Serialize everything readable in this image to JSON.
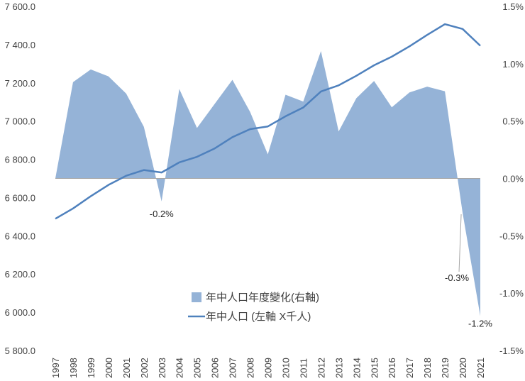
{
  "chart_data": {
    "type": "area+line",
    "categories": [
      "1997",
      "1998",
      "1999",
      "2000",
      "2001",
      "2002",
      "2003",
      "2004",
      "2005",
      "2006",
      "2007",
      "2008",
      "2009",
      "2010",
      "2011",
      "2012",
      "2013",
      "2014",
      "2015",
      "2016",
      "2017",
      "2018",
      "2019",
      "2020",
      "2021"
    ],
    "series": [
      {
        "name": "年中人口年度變化(右軸)",
        "type": "area",
        "axis": "right",
        "color": "#95B3D7",
        "values": [
          0.0,
          0.84,
          0.95,
          0.89,
          0.74,
          0.45,
          -0.2,
          0.78,
          0.44,
          0.65,
          0.86,
          0.58,
          0.21,
          0.73,
          0.67,
          1.11,
          0.41,
          0.7,
          0.85,
          0.62,
          0.75,
          0.8,
          0.76,
          -0.3,
          -1.2
        ]
      },
      {
        "name": "年中人口 (左軸 X千人)",
        "type": "line",
        "axis": "left",
        "color": "#4F81BD",
        "values": [
          6489,
          6543,
          6607,
          6666,
          6714,
          6744,
          6731,
          6784,
          6813,
          6857,
          6916,
          6958,
          6972,
          7025,
          7071,
          7155,
          7187,
          7237,
          7292,
          7337,
          7391,
          7451,
          7507,
          7482,
          7394
        ]
      }
    ],
    "y_left": {
      "min": 5800,
      "max": 7600,
      "step": 200,
      "ticks": [
        "5 800.0",
        "6 000.0",
        "6 200.0",
        "6 400.0",
        "6 600.0",
        "6 800.0",
        "7 000.0",
        "7 200.0",
        "7 400.0",
        "7 600.0"
      ]
    },
    "y_right": {
      "min": -1.5,
      "max": 1.5,
      "step": 0.5,
      "ticks": [
        "-1.5%",
        "-1.0%",
        "-0.5%",
        "0.0%",
        "0.5%",
        "1.0%",
        "1.5%"
      ]
    },
    "annotations": [
      {
        "year": "2003",
        "value": -0.2,
        "label": "-0.2%"
      },
      {
        "year": "2020",
        "value": -0.3,
        "label": "-0.3%"
      },
      {
        "year": "2021",
        "value": -1.2,
        "label": "-1.2%"
      }
    ],
    "grid": false,
    "legend_position": "bottom-center"
  }
}
